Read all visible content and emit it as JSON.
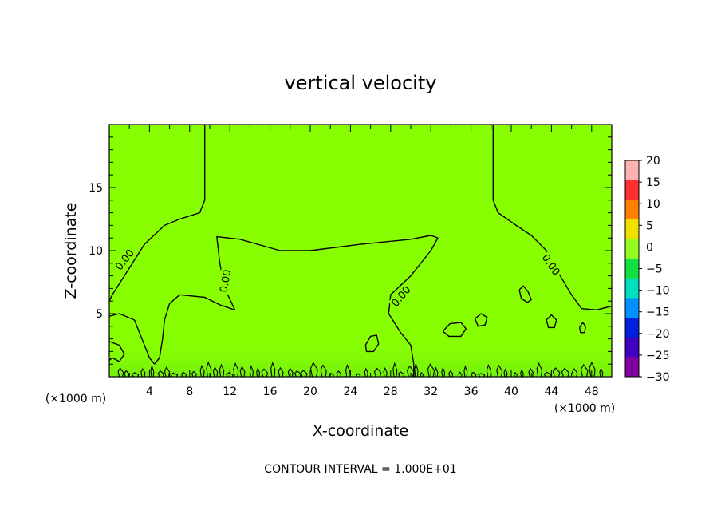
{
  "chart_data": {
    "type": "heatmap",
    "title": "vertical velocity",
    "xlabel": "X-coordinate",
    "ylabel": "Z-coordinate",
    "x_unit": "(×1000 m)",
    "y_unit": "(×1000 m)",
    "xlim": [
      0,
      50
    ],
    "ylim": [
      0,
      20
    ],
    "x_ticks": [
      4,
      8,
      12,
      16,
      20,
      24,
      28,
      32,
      36,
      40,
      44,
      48
    ],
    "y_ticks": [
      5,
      10,
      15
    ],
    "footer": "CONTOUR INTERVAL = 1.000E+01",
    "contour_label": "0.00",
    "colorbar": {
      "ticks": [
        20,
        15,
        10,
        5,
        0,
        -5,
        -10,
        -15,
        -20,
        -25,
        -30
      ],
      "range": [
        -30,
        20
      ],
      "colors": [
        "#ffb0b0",
        "#ff3030",
        "#ff8000",
        "#f0e000",
        "#90ff20",
        "#10e040",
        "#00e0c0",
        "#0090ff",
        "#0020e0",
        "#4000c0",
        "#8000a0"
      ]
    },
    "field_color": "#88ff00",
    "contour_lines": [
      {
        "name": "left-upper-zero",
        "points": [
          [
            9.5,
            20
          ],
          [
            9.5,
            14
          ],
          [
            9,
            13
          ],
          [
            7,
            12.5
          ],
          [
            5.5,
            12
          ],
          [
            3.5,
            10.5
          ],
          [
            1.5,
            8
          ],
          [
            0.3,
            6.5
          ],
          [
            0,
            6
          ]
        ]
      },
      {
        "name": "right-upper-zero",
        "points": [
          [
            38.2,
            20
          ],
          [
            38.2,
            14
          ],
          [
            38.7,
            13
          ],
          [
            40.5,
            12
          ],
          [
            42,
            11.2
          ],
          [
            43.5,
            10
          ],
          [
            44.5,
            8.5
          ],
          [
            46,
            6.5
          ],
          [
            47,
            5.4
          ],
          [
            48.5,
            5.3
          ],
          [
            50,
            5.6
          ]
        ]
      },
      {
        "name": "central-lobe",
        "points": [
          [
            12.5,
            5.3
          ],
          [
            11.5,
            7
          ],
          [
            11,
            9
          ],
          [
            10.7,
            11.1
          ],
          [
            13,
            10.9
          ],
          [
            17,
            10
          ],
          [
            20,
            10
          ],
          [
            25,
            10.5
          ],
          [
            30,
            10.9
          ],
          [
            32,
            11.2
          ],
          [
            32.7,
            11
          ],
          [
            32,
            10
          ],
          [
            30,
            8
          ],
          [
            28,
            6.5
          ],
          [
            27.8,
            5
          ],
          [
            29,
            3.5
          ],
          [
            30,
            2.5
          ],
          [
            30.3,
            1
          ],
          [
            30.3,
            0
          ]
        ]
      },
      {
        "name": "central-lobe-left-leg",
        "points": [
          [
            12.5,
            5.3
          ],
          [
            11,
            5.7
          ],
          [
            9.5,
            6.3
          ],
          [
            7,
            6.5
          ],
          [
            6,
            5.8
          ],
          [
            5.5,
            4.5
          ],
          [
            5.3,
            3
          ],
          [
            5,
            1.5
          ],
          [
            4.5,
            1
          ]
        ]
      },
      {
        "name": "left-lower",
        "points": [
          [
            0,
            4.8
          ],
          [
            1,
            5
          ],
          [
            2.5,
            4.5
          ],
          [
            3,
            3.5
          ],
          [
            3.5,
            2.5
          ],
          [
            4,
            1.5
          ],
          [
            4.5,
            1
          ]
        ]
      },
      {
        "name": "left-low-wiggle",
        "points": [
          [
            0,
            2.8
          ],
          [
            1,
            2.5
          ],
          [
            1.5,
            1.8
          ],
          [
            1,
            1.2
          ],
          [
            0.3,
            1.5
          ],
          [
            0,
            1.3
          ]
        ]
      },
      {
        "name": "oval-26",
        "points": [
          [
            25.5,
            2.5
          ],
          [
            26,
            3.2
          ],
          [
            26.6,
            3.3
          ],
          [
            26.8,
            2.6
          ],
          [
            26.3,
            2
          ],
          [
            25.6,
            2
          ],
          [
            25.5,
            2.5
          ]
        ]
      },
      {
        "name": "oval-34",
        "points": [
          [
            33.2,
            3.6
          ],
          [
            33.9,
            4.2
          ],
          [
            35,
            4.3
          ],
          [
            35.5,
            3.8
          ],
          [
            35,
            3.2
          ],
          [
            33.8,
            3.2
          ],
          [
            33.2,
            3.6
          ]
        ]
      },
      {
        "name": "oval-37",
        "points": [
          [
            36.4,
            4.6
          ],
          [
            37,
            5
          ],
          [
            37.6,
            4.7
          ],
          [
            37.4,
            4.1
          ],
          [
            36.7,
            4
          ],
          [
            36.4,
            4.6
          ]
        ]
      },
      {
        "name": "oval-41",
        "points": [
          [
            40.8,
            6.9
          ],
          [
            41.2,
            7.2
          ],
          [
            41.7,
            6.7
          ],
          [
            42,
            6.1
          ],
          [
            41.6,
            5.9
          ],
          [
            41,
            6.2
          ],
          [
            40.8,
            6.9
          ]
        ]
      },
      {
        "name": "oval-44",
        "points": [
          [
            43.5,
            4.5
          ],
          [
            44,
            4.9
          ],
          [
            44.5,
            4.5
          ],
          [
            44.3,
            3.9
          ],
          [
            43.7,
            3.9
          ],
          [
            43.5,
            4.5
          ]
        ]
      },
      {
        "name": "oval-47",
        "points": [
          [
            46.8,
            3.9
          ],
          [
            47.1,
            4.3
          ],
          [
            47.4,
            4
          ],
          [
            47.3,
            3.5
          ],
          [
            46.9,
            3.5
          ],
          [
            46.8,
            3.9
          ]
        ]
      }
    ],
    "contour_labels": [
      {
        "x": 1.5,
        "y": 9.3,
        "angle": -52
      },
      {
        "x": 11.5,
        "y": 7.6,
        "angle": -80
      },
      {
        "x": 29.0,
        "y": 6.4,
        "angle": -50
      },
      {
        "x": 44.0,
        "y": 8.9,
        "angle": 56
      }
    ]
  }
}
